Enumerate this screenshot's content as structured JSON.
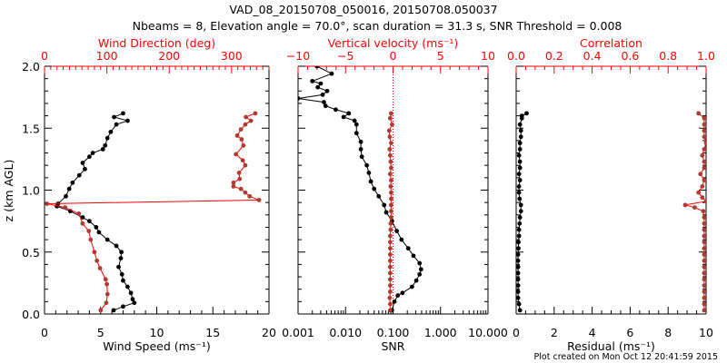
{
  "title": "VAD_08_20150708_050016, 20150708.050037",
  "subtitle": "Nbeams = 8, Elevation angle = 70.0°, scan duration = 31.3 s, SNR Threshold = 0.008",
  "footer": "Plot created on Mon Oct 12 20:41:59 2015",
  "colors": {
    "black_series": "#000000",
    "brown_series": "#b03a2e",
    "red_axis": "#ff0000"
  },
  "chart_data": [
    {
      "type": "line",
      "name": "wind-panel",
      "ylabel": "z (km AGL)",
      "ylim": [
        0,
        2.0
      ],
      "yticks": [
        "0.0",
        "0.5",
        "1.0",
        "1.5",
        "2.0"
      ],
      "xlabel": "Wind Speed (ms⁻¹)",
      "xlim": [
        0,
        20
      ],
      "xticks": [
        "0",
        "5",
        "10",
        "15",
        "20"
      ],
      "top_xlabel": "Wind Direction (deg)",
      "top_xlim": [
        0,
        360
      ],
      "top_xticks": [
        "0",
        "100",
        "200",
        "300"
      ],
      "series": [
        {
          "name": "Wind Speed",
          "axis": "bottom",
          "z": [
            0.03,
            0.06,
            0.09,
            0.12,
            0.17,
            0.22,
            0.27,
            0.32,
            0.38,
            0.45,
            0.5,
            0.55,
            0.6,
            0.66,
            0.7,
            0.75,
            0.78,
            0.83,
            0.87,
            0.89,
            0.95,
            1.01,
            1.06,
            1.12,
            1.17,
            1.22,
            1.27,
            1.3,
            1.33,
            1.36,
            1.42,
            1.47,
            1.53,
            1.56,
            1.59,
            1.62
          ],
          "values": [
            6.15,
            7.0,
            8.0,
            7.85,
            7.7,
            7.4,
            7.0,
            6.9,
            6.6,
            6.8,
            6.85,
            6.4,
            5.6,
            4.85,
            4.6,
            4.0,
            3.4,
            2.3,
            1.1,
            1.2,
            1.9,
            2.2,
            2.5,
            3.1,
            3.6,
            3.4,
            4.0,
            4.3,
            5.2,
            5.4,
            5.6,
            5.9,
            6.4,
            7.4,
            6.2,
            7.0
          ]
        },
        {
          "name": "Wind Direction",
          "axis": "top",
          "z": [
            0.03,
            0.09,
            0.16,
            0.24,
            0.28,
            0.37,
            0.43,
            0.5,
            0.6,
            0.67,
            0.73,
            0.81,
            0.86,
            0.89,
            0.92,
            0.95,
            0.98,
            1.01,
            1.03,
            1.06,
            1.09,
            1.14,
            1.2,
            1.24,
            1.29,
            1.36,
            1.41,
            1.44,
            1.49,
            1.53,
            1.56,
            1.59,
            1.62
          ],
          "values": [
            90,
            99,
            101,
            100,
            98,
            89,
            84,
            80,
            74,
            71,
            61,
            55,
            33,
            4,
            344,
            329,
            322,
            315,
            303,
            303,
            313,
            312,
            322,
            318,
            307,
            319,
            316,
            309,
            315,
            322,
            331,
            323,
            338
          ]
        }
      ]
    },
    {
      "type": "line",
      "name": "snr-panel",
      "ylim": [
        0,
        2.0
      ],
      "xlabel": "SNR",
      "xscale": "log",
      "xlim": [
        0.001,
        10
      ],
      "xticks": [
        "0.001",
        "0.010",
        "0.100",
        "1.000",
        "10.000"
      ],
      "top_xlabel": "Vertical velocity (ms⁻¹)",
      "top_xlim": [
        -10,
        10
      ],
      "top_xticks": [
        "−10",
        "−5",
        "0",
        "5",
        "10"
      ],
      "series": [
        {
          "name": "SNR",
          "axis": "bottom",
          "z": [
            0.03,
            0.1,
            0.15,
            0.17,
            0.22,
            0.27,
            0.32,
            0.36,
            0.41,
            0.47,
            0.53,
            0.6,
            0.67,
            0.75,
            0.82,
            0.88,
            0.95,
            1.01,
            1.07,
            1.14,
            1.2,
            1.27,
            1.33,
            1.39,
            1.46,
            1.53,
            1.56,
            1.59,
            1.62,
            1.65,
            1.68,
            1.71,
            1.74,
            1.77,
            1.8,
            1.83,
            1.86,
            1.88,
            1.94,
            2.0
          ],
          "values": [
            0.095,
            0.107,
            0.126,
            0.158,
            0.251,
            0.309,
            0.363,
            0.389,
            0.363,
            0.269,
            0.209,
            0.151,
            0.12,
            0.095,
            0.072,
            0.065,
            0.05,
            0.04,
            0.034,
            0.031,
            0.028,
            0.022,
            0.021,
            0.021,
            0.017,
            0.017,
            0.0155,
            0.0091,
            0.0117,
            0.0062,
            0.0038,
            0.0035,
            0.001,
            0.0033,
            0.0041,
            0.0026,
            0.003,
            0.002,
            0.0051,
            0.0025
          ]
        },
        {
          "name": "Vertical velocity",
          "axis": "top",
          "z": [
            0.03,
            0.08,
            0.13,
            0.18,
            0.23,
            0.28,
            0.33,
            0.38,
            0.43,
            0.48,
            0.53,
            0.58,
            0.63,
            0.68,
            0.73,
            0.78,
            0.83,
            0.88,
            0.93,
            0.98,
            1.03,
            1.08,
            1.13,
            1.18,
            1.23,
            1.28,
            1.33,
            1.38,
            1.43,
            1.48,
            1.53,
            1.58,
            1.62
          ],
          "values": [
            -0.3,
            -0.3,
            -0.35,
            -0.3,
            -0.3,
            -0.3,
            -0.3,
            -0.3,
            -0.3,
            -0.3,
            -0.3,
            -0.3,
            -0.3,
            -0.25,
            -0.25,
            -0.2,
            -0.2,
            -0.2,
            -0.2,
            -0.2,
            -0.25,
            -0.2,
            -0.3,
            -0.2,
            -0.25,
            -0.3,
            -0.35,
            -0.2,
            -0.35,
            -0.4,
            -0.1,
            -0.3,
            -0.2
          ]
        }
      ]
    },
    {
      "type": "line",
      "name": "residual-panel",
      "ylim": [
        0,
        2.0
      ],
      "xlabel": "Residual (ms⁻¹)",
      "xlim": [
        0,
        10
      ],
      "xticks": [
        "0",
        "2",
        "4",
        "6",
        "8",
        "10"
      ],
      "top_xlabel": "Correlation",
      "top_xlim": [
        0,
        1
      ],
      "top_xticks": [
        "0.0",
        "0.2",
        "0.4",
        "0.6",
        "0.8",
        "1.0"
      ],
      "series": [
        {
          "name": "Residual",
          "axis": "bottom",
          "z": [
            0.03,
            0.08,
            0.13,
            0.18,
            0.23,
            0.28,
            0.33,
            0.38,
            0.43,
            0.48,
            0.53,
            0.58,
            0.63,
            0.68,
            0.73,
            0.78,
            0.83,
            0.88,
            0.93,
            0.98,
            1.03,
            1.08,
            1.13,
            1.18,
            1.23,
            1.28,
            1.33,
            1.38,
            1.43,
            1.48,
            1.53,
            1.58,
            1.6,
            1.62
          ],
          "values": [
            0.2,
            0.15,
            0.1,
            0.1,
            0.1,
            0.1,
            0.1,
            0.1,
            0.1,
            0.1,
            0.12,
            0.12,
            0.15,
            0.15,
            0.18,
            0.2,
            0.25,
            0.25,
            0.18,
            0.15,
            0.15,
            0.2,
            0.15,
            0.2,
            0.2,
            0.15,
            0.2,
            0.2,
            0.25,
            0.25,
            0.2,
            0.3,
            0.3,
            0.55
          ]
        },
        {
          "name": "Correlation",
          "axis": "top",
          "z": [
            0.03,
            0.08,
            0.13,
            0.18,
            0.23,
            0.28,
            0.33,
            0.38,
            0.43,
            0.48,
            0.53,
            0.58,
            0.63,
            0.68,
            0.73,
            0.78,
            0.83,
            0.86,
            0.88,
            0.91,
            0.94,
            0.98,
            1.03,
            1.08,
            1.13,
            1.18,
            1.23,
            1.28,
            1.33,
            1.38,
            1.43,
            1.48,
            1.53,
            1.58,
            1.62
          ],
          "values": [
            0.99,
            0.99,
            0.99,
            0.99,
            0.99,
            0.99,
            0.99,
            0.99,
            0.99,
            0.99,
            0.99,
            0.99,
            0.99,
            0.99,
            0.99,
            0.99,
            0.985,
            0.94,
            0.89,
            1.0,
            0.98,
            0.96,
            0.98,
            0.99,
            0.97,
            0.99,
            0.99,
            0.98,
            0.99,
            1.0,
            0.99,
            0.99,
            0.99,
            0.99,
            0.96
          ]
        }
      ]
    }
  ]
}
